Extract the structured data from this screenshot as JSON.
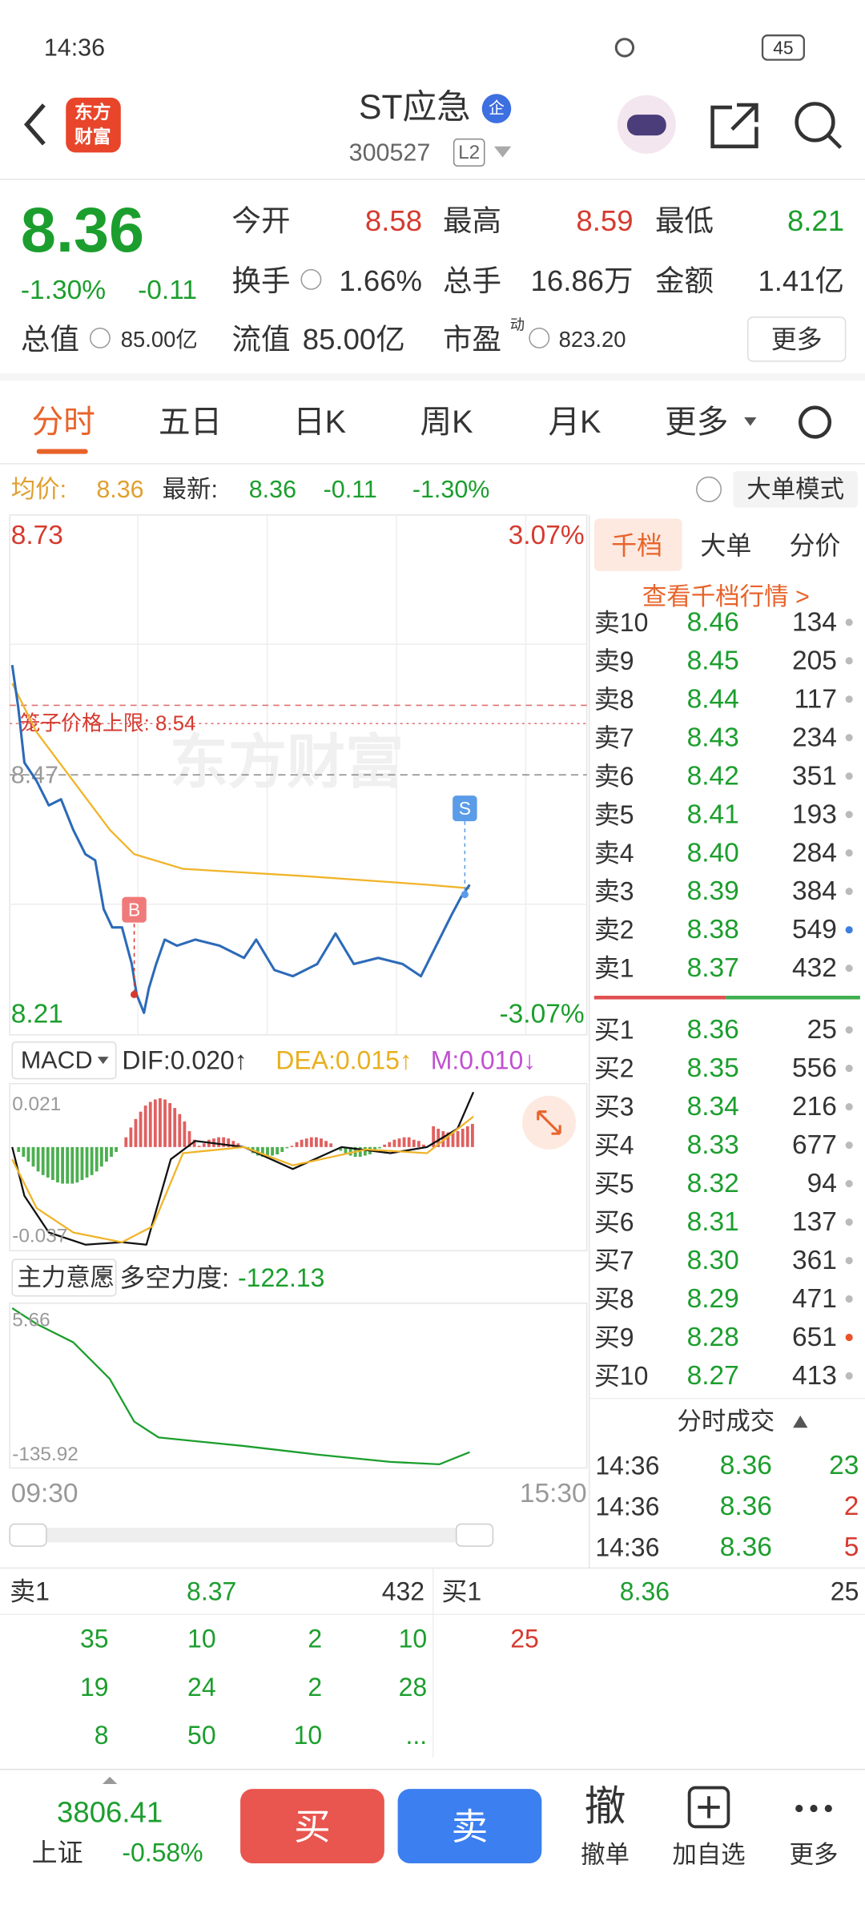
{
  "status_bar": {
    "time": "14:36",
    "battery": "45"
  },
  "header": {
    "logo": [
      "东方",
      "财富"
    ],
    "title": "ST应急",
    "badge": "企",
    "code": "300527",
    "level": "L2"
  },
  "quote": {
    "price": "8.36",
    "change_pct": "-1.30%",
    "change": "-0.11",
    "fields": [
      {
        "label": "今开",
        "value": "8.58"
      },
      {
        "label": "最高",
        "value": "8.59"
      },
      {
        "label": "最低",
        "value": "8.21"
      },
      {
        "label": "换手",
        "value": "1.66%"
      },
      {
        "label": "总手",
        "value": "16.86万"
      },
      {
        "label": "金额",
        "value": "1.41亿"
      }
    ],
    "total_label": "总值",
    "total_value": "85.00亿",
    "float_label": "流值",
    "float_value": "85.00亿",
    "pe_label": "市盈",
    "pe_sup": "动",
    "pe_value": "823.20",
    "more": "更多"
  },
  "tabs": [
    "分时",
    "五日",
    "日K",
    "周K",
    "月K",
    "更多"
  ],
  "info_line": {
    "avg_label": "均价:",
    "avg": "8.36",
    "latest_label": "最新:",
    "latest": "8.36",
    "change": "-0.11",
    "pct": "-1.30%",
    "mode": "大单模式"
  },
  "chart": {
    "high": "8.73",
    "high_pct": "3.07%",
    "low": "8.21",
    "low_pct": "-3.07%",
    "mid": "8.47",
    "cage_label": "笼子价格上限: 8.54",
    "watermark": "东方财富",
    "buy_marker": "B",
    "sell_marker": "S",
    "start": "09:30",
    "end": "15:30"
  },
  "macd": {
    "selector": "MACD",
    "dif": "DIF:0.020↑",
    "dea": "DEA:0.015↑",
    "m": "M:0.010↓",
    "max": "0.021",
    "min": "-0.037"
  },
  "force": {
    "selector": "主力意愿",
    "label": "多空力度:",
    "value": "-122.13",
    "max": "5.66",
    "min": "-135.92"
  },
  "order_book": {
    "tabs": [
      "千档",
      "大单",
      "分价"
    ],
    "link": "查看千档行情 >",
    "asks": [
      {
        "label": "卖10",
        "price": "8.46",
        "volume": "134"
      },
      {
        "label": "卖9",
        "price": "8.45",
        "volume": "205"
      },
      {
        "label": "卖8",
        "price": "8.44",
        "volume": "117"
      },
      {
        "label": "卖7",
        "price": "8.43",
        "volume": "234"
      },
      {
        "label": "卖6",
        "price": "8.42",
        "volume": "351"
      },
      {
        "label": "卖5",
        "price": "8.41",
        "volume": "193"
      },
      {
        "label": "卖4",
        "price": "8.40",
        "volume": "284"
      },
      {
        "label": "卖3",
        "price": "8.39",
        "volume": "384"
      },
      {
        "label": "卖2",
        "price": "8.38",
        "volume": "549"
      },
      {
        "label": "卖1",
        "price": "8.37",
        "volume": "432"
      }
    ],
    "bids": [
      {
        "label": "买1",
        "price": "8.36",
        "volume": "25"
      },
      {
        "label": "买2",
        "price": "8.35",
        "volume": "556"
      },
      {
        "label": "买3",
        "price": "8.34",
        "volume": "216"
      },
      {
        "label": "买4",
        "price": "8.33",
        "volume": "677"
      },
      {
        "label": "买5",
        "price": "8.32",
        "volume": "94"
      },
      {
        "label": "买6",
        "price": "8.31",
        "volume": "137"
      },
      {
        "label": "买7",
        "price": "8.30",
        "volume": "361"
      },
      {
        "label": "买8",
        "price": "8.29",
        "volume": "471"
      },
      {
        "label": "买9",
        "price": "8.28",
        "volume": "651"
      },
      {
        "label": "买10",
        "price": "8.27",
        "volume": "413"
      }
    ],
    "trades_title": "分时成交",
    "trades": [
      {
        "time": "14:36",
        "price": "8.36",
        "volume": "23"
      },
      {
        "time": "14:36",
        "price": "8.36",
        "volume": "2"
      },
      {
        "time": "14:36",
        "price": "8.36",
        "volume": "5"
      }
    ]
  },
  "queue": {
    "ask_label": "卖1",
    "ask_price": "8.37",
    "ask_volume": "432",
    "bid_label": "买1",
    "bid_price": "8.36",
    "bid_volume": "25",
    "ask_orders": [
      [
        "35",
        "10",
        "2",
        "10"
      ],
      [
        "19",
        "24",
        "2",
        "28"
      ],
      [
        "8",
        "50",
        "10",
        "..."
      ]
    ],
    "bid_orders": [
      "25"
    ]
  },
  "bottom": {
    "index_value": "3806.41",
    "index_name": "上证",
    "index_change": "-0.58%",
    "buy": "买",
    "sell": "卖",
    "cancel_icon": "撤",
    "cancel": "撤单",
    "add": "加自选",
    "more": "更多"
  }
}
